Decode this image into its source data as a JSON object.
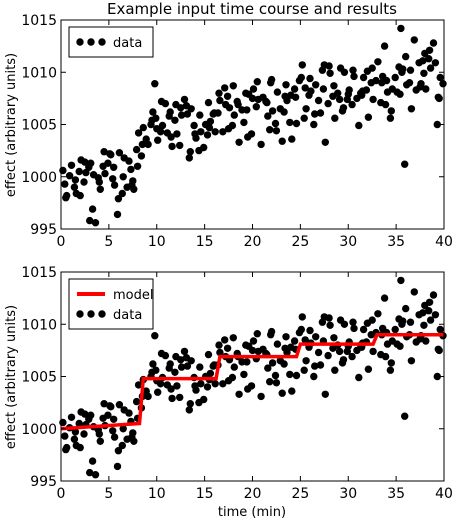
{
  "chart_data": [
    {
      "type": "scatter",
      "title": "Example input time course and results",
      "xlabel": "",
      "ylabel": "effect (arbitrary units)",
      "xlim": [
        0,
        40
      ],
      "ylim": [
        995,
        1015
      ],
      "xticks": [
        "0",
        "5",
        "10",
        "15",
        "20",
        "25",
        "30",
        "35",
        "40"
      ],
      "yticks": [
        "995",
        "1000",
        "1005",
        "1010",
        "1015"
      ],
      "legend": {
        "placement": "top-left",
        "entries": [
          "data"
        ]
      },
      "series": [
        {
          "name": "data",
          "color": "#000000",
          "x": [
            0.2,
            0.4,
            0.6,
            0.9,
            1.1,
            1.4,
            1.6,
            1.9,
            2.1,
            2.4,
            2.6,
            2.9,
            3.1,
            3.4,
            3.6,
            3.9,
            4.1,
            4.4,
            4.6,
            4.9,
            5.1,
            5.4,
            5.6,
            5.9,
            6.1,
            6.4,
            6.6,
            6.9,
            7.1,
            7.4,
            7.6,
            7.9,
            8.1,
            8.4,
            8.6,
            8.9,
            9.1,
            9.4,
            9.6,
            9.9,
            10.1,
            10.4,
            10.6,
            10.9,
            11.1,
            11.4,
            11.6,
            11.9,
            12.1,
            12.4,
            12.6,
            12.9,
            13.1,
            13.4,
            13.6,
            13.9,
            14.1,
            14.4,
            14.6,
            14.9,
            15.1,
            15.4,
            15.6,
            15.9,
            16.1,
            16.4,
            16.6,
            16.9,
            17.1,
            17.4,
            17.6,
            17.9,
            18.1,
            18.4,
            18.6,
            18.9,
            19.1,
            19.4,
            19.6,
            19.9,
            20.1,
            20.4,
            20.6,
            20.9,
            21.1,
            21.4,
            21.6,
            21.9,
            22.1,
            22.4,
            22.6,
            22.9,
            23.1,
            23.4,
            23.6,
            23.9,
            24.1,
            24.4,
            24.6,
            24.9,
            25.1,
            25.4,
            25.6,
            25.9,
            26.1,
            26.4,
            26.6,
            26.9,
            27.1,
            27.4,
            27.6,
            27.9,
            28.1,
            28.4,
            28.6,
            28.9,
            29.1,
            29.4,
            29.6,
            29.9,
            30.1,
            30.4,
            30.6,
            30.9,
            31.1,
            31.4,
            31.6,
            31.9,
            32.1,
            32.4,
            32.6,
            32.9,
            33.1,
            33.4,
            33.6,
            33.9,
            34.1,
            34.4,
            34.6,
            34.9,
            35.1,
            35.4,
            35.6,
            35.9,
            36.1,
            36.4,
            36.6,
            36.9,
            37.1,
            37.4,
            37.6,
            37.9,
            38.1,
            38.4,
            38.6,
            38.9,
            39.1,
            39.4,
            39.6,
            39.9,
            0.5,
            1.5,
            2.5,
            3.0,
            4.5,
            5.5,
            6.5,
            7.5,
            8.5,
            9.5,
            10.5,
            11.5,
            12.5,
            13.5,
            14.5,
            15.5,
            16.5,
            17.5,
            18.5,
            19.5,
            20.5,
            21.5,
            22.5,
            23.5,
            24.5,
            25.5,
            26.5,
            27.5,
            28.5,
            29.5,
            30.5,
            31.5,
            32.5,
            33.5,
            34.5,
            35.5,
            36.5,
            37.5,
            38.5,
            39.5,
            2.0,
            4.0,
            6.0,
            8.0,
            10.0,
            12.0,
            14.0,
            16.0,
            18.0,
            20.0,
            22.0,
            24.0,
            26.0,
            28.0,
            30.0,
            32.0,
            34.0,
            36.0,
            38.0,
            3.3,
            7.3,
            11.3,
            15.3,
            19.3,
            23.3,
            27.3,
            31.3,
            35.3,
            39.3,
            9.8,
            17.2,
            21.8,
            29.2,
            33.8,
            37.8,
            5.2,
            13.2,
            25.2,
            35.7
          ],
          "y": [
            1000.6,
            999.3,
            998.2,
            1000.1,
            1001.1,
            999.0,
            998.4,
            1000.5,
            1001.6,
            999.5,
            1000.4,
            1000.9,
            1001.3,
            1000.2,
            995.6,
            999.9,
            998.8,
            1001.0,
            1000.3,
            1001.3,
            1002.2,
            999.8,
            999.2,
            996.4,
            1002.3,
            998.4,
            1001.8,
            999.0,
            1001.5,
            999.2,
            998.8,
            1002.6,
            1004.2,
            1002.0,
            1004.7,
            1003.6,
            1003.1,
            1005.0,
            1006.2,
            1005.6,
            1003.5,
            1004.3,
            1004.9,
            1007.0,
            1004.2,
            1006.2,
            1002.9,
            1005.4,
            1004.1,
            1003.0,
            1005.9,
            1007.4,
            1006.8,
            1001.8,
            1006.5,
            1004.9,
            1003.7,
            1002.5,
            1004.3,
            1002.8,
            1005.0,
            1007.1,
            1005.3,
            1006.0,
            1004.3,
            1006.1,
            1007.3,
            1004.3,
            1008.5,
            1007.7,
            1006.6,
            1004.9,
            1005.9,
            1007.2,
            1003.3,
            1006.4,
            1005.2,
            1006.4,
            1007.9,
            1004.1,
            1008.4,
            1006.7,
            1007.4,
            1003.1,
            1007.6,
            1007.2,
            1005.8,
            1009.0,
            1006.3,
            1005.1,
            1008.1,
            1006.5,
            1003.4,
            1007.7,
            1007.3,
            1005.2,
            1003.6,
            1008.4,
            1005.1,
            1009.2,
            1009.5,
            1005.6,
            1006.5,
            1007.8,
            1008.2,
            1005.0,
            1008.8,
            1007.3,
            1006.1,
            1008.4,
            1003.3,
            1007.0,
            1009.9,
            1007.7,
            1005.6,
            1008.0,
            1007.4,
            1006.3,
            1010.0,
            1007.4,
            1008.3,
            1006.9,
            1009.6,
            1007.5,
            1004.9,
            1007.8,
            1009.5,
            1008.3,
            1005.7,
            1009.0,
            1007.4,
            1009.2,
            1011.0,
            1007.1,
            1009.6,
            1006.9,
            1008.1,
            1005.6,
            1008.4,
            1009.5,
            1008.1,
            1007.9,
            1010.0,
            1001.2,
            1008.8,
            1009.0,
            1006.5,
            1013.1,
            1008.3,
            1010.9,
            1008.9,
            1009.9,
            1008.4,
            1011.3,
            1010.4,
            1012.8,
            1010.9,
            1007.6,
            1009.5,
            1008.9,
            998.0,
            999.7,
            1001.4,
            995.8,
            1002.4,
            1000.9,
            1000.0,
            999.6,
            1003.1,
            1005.4,
            1007.2,
            1003.8,
            1006.6,
            1002.4,
            1005.9,
            1004.7,
            1008.0,
            1004.6,
            1006.9,
            1003.8,
            1009.1,
            1007.1,
            1004.4,
            1008.8,
            1007.6,
            1008.5,
            1006.0,
            1010.7,
            1008.7,
            1006.6,
            1010.2,
            1008.2,
            1010.4,
            1009.0,
            1006.3,
            1014.2,
            1010.2,
            1008.6,
            1012.1,
            1007.5,
            998.2,
            999.5,
            997.9,
            1001.0,
            1004.6,
            1006.9,
            1004.1,
            1006.1,
            1008.7,
            1007.5,
            1009.3,
            1007.8,
            1009.4,
            1010.6,
            1007.9,
            1010.1,
            1009.2,
            1011.5,
            1011.8,
            996.9,
            1000.7,
            1005.8,
            1004.0,
            1008.0,
            1006.2,
            1010.2,
            1008.0,
            1010.5,
            1005.0,
            1008.9,
            1006.9,
            1004.5,
            1010.4,
            1012.5,
            1011.1,
            1002.1,
            1006.0,
            1010.7,
            1010.3
          ]
        }
      ]
    },
    {
      "type": "scatter",
      "title": "",
      "xlabel": "time (min)",
      "ylabel": "effect (arbitrary units)",
      "xlim": [
        0,
        40
      ],
      "ylim": [
        995,
        1015
      ],
      "xticks": [
        "0",
        "5",
        "10",
        "15",
        "20",
        "25",
        "30",
        "35",
        "40"
      ],
      "yticks": [
        "995",
        "1000",
        "1005",
        "1010",
        "1015"
      ],
      "legend": {
        "placement": "top-left",
        "entries": [
          "model",
          "data"
        ]
      },
      "series": [
        {
          "name": "model",
          "type": "line",
          "color": "#ff0000",
          "x": [
            0,
            8.2,
            8.6,
            16.2,
            16.6,
            24.6,
            25.0,
            32.6,
            33.0,
            40
          ],
          "y": [
            1000.0,
            1000.5,
            1004.8,
            1004.8,
            1006.9,
            1006.9,
            1008.1,
            1008.1,
            1009.0,
            1009.0
          ]
        },
        {
          "name": "data",
          "type": "scatter",
          "color": "#000000",
          "same_as": "chart_data.0.series.0"
        }
      ]
    }
  ]
}
